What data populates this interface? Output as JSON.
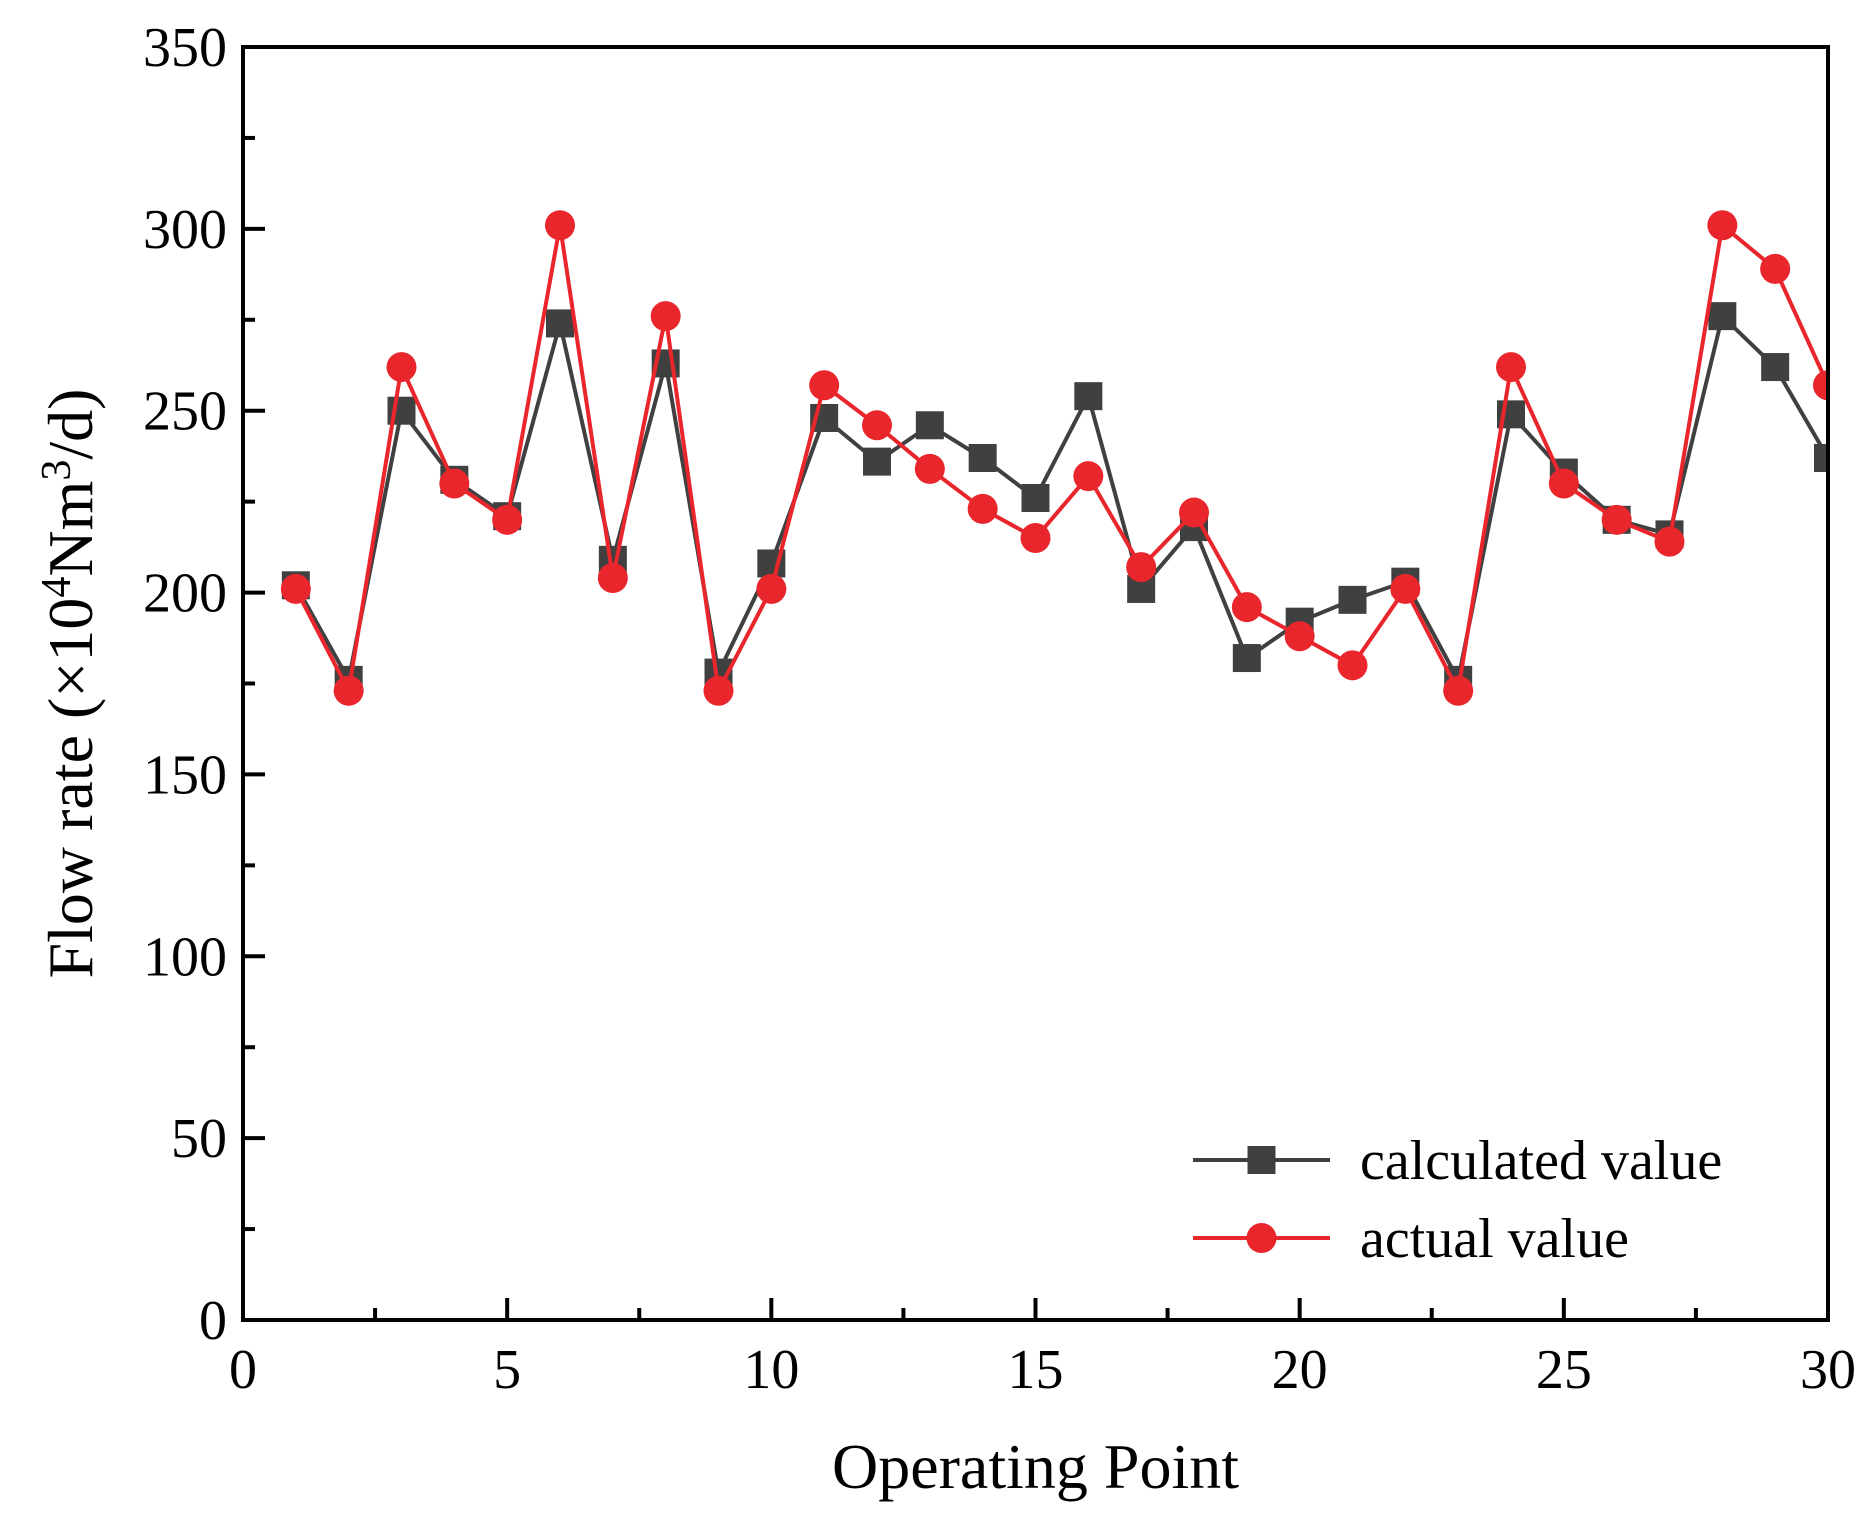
{
  "chart_data": {
    "type": "line",
    "title": "",
    "xlabel": "Operating Point",
    "ylabel": "Flow rate (×10",
    "ylabel_sup1": "4",
    "ylabel_mid": "Nm",
    "ylabel_sup2": "3",
    "ylabel_end": "/d)",
    "xlim": [
      0,
      30
    ],
    "ylim": [
      0,
      350
    ],
    "xticks": [
      0,
      5,
      10,
      15,
      20,
      25,
      30
    ],
    "yticks": [
      0,
      50,
      100,
      150,
      200,
      250,
      300,
      350
    ],
    "grid": false,
    "legend_position": "bottom-right",
    "x": [
      1,
      2,
      3,
      4,
      5,
      6,
      7,
      8,
      9,
      10,
      11,
      12,
      13,
      14,
      15,
      16,
      17,
      18,
      19,
      20,
      21,
      22,
      23,
      24,
      25,
      26,
      27,
      28,
      29,
      30
    ],
    "series": [
      {
        "name": "calculated value",
        "marker": "square",
        "color": "#404040",
        "values": [
          202,
          176,
          250,
          231,
          221,
          274,
          209,
          263,
          178,
          208,
          248,
          236,
          246,
          237,
          226,
          254,
          201,
          218,
          182,
          192,
          198,
          203,
          176,
          249,
          233,
          220,
          216,
          276,
          262,
          237
        ]
      },
      {
        "name": "actual value",
        "marker": "circle",
        "color": "#e8262c",
        "values": [
          201,
          173,
          262,
          230,
          220,
          301,
          204,
          276,
          173,
          201,
          257,
          246,
          234,
          223,
          215,
          232,
          207,
          222,
          196,
          188,
          180,
          201,
          173,
          262,
          230,
          220,
          214,
          301,
          289,
          257
        ]
      }
    ]
  }
}
